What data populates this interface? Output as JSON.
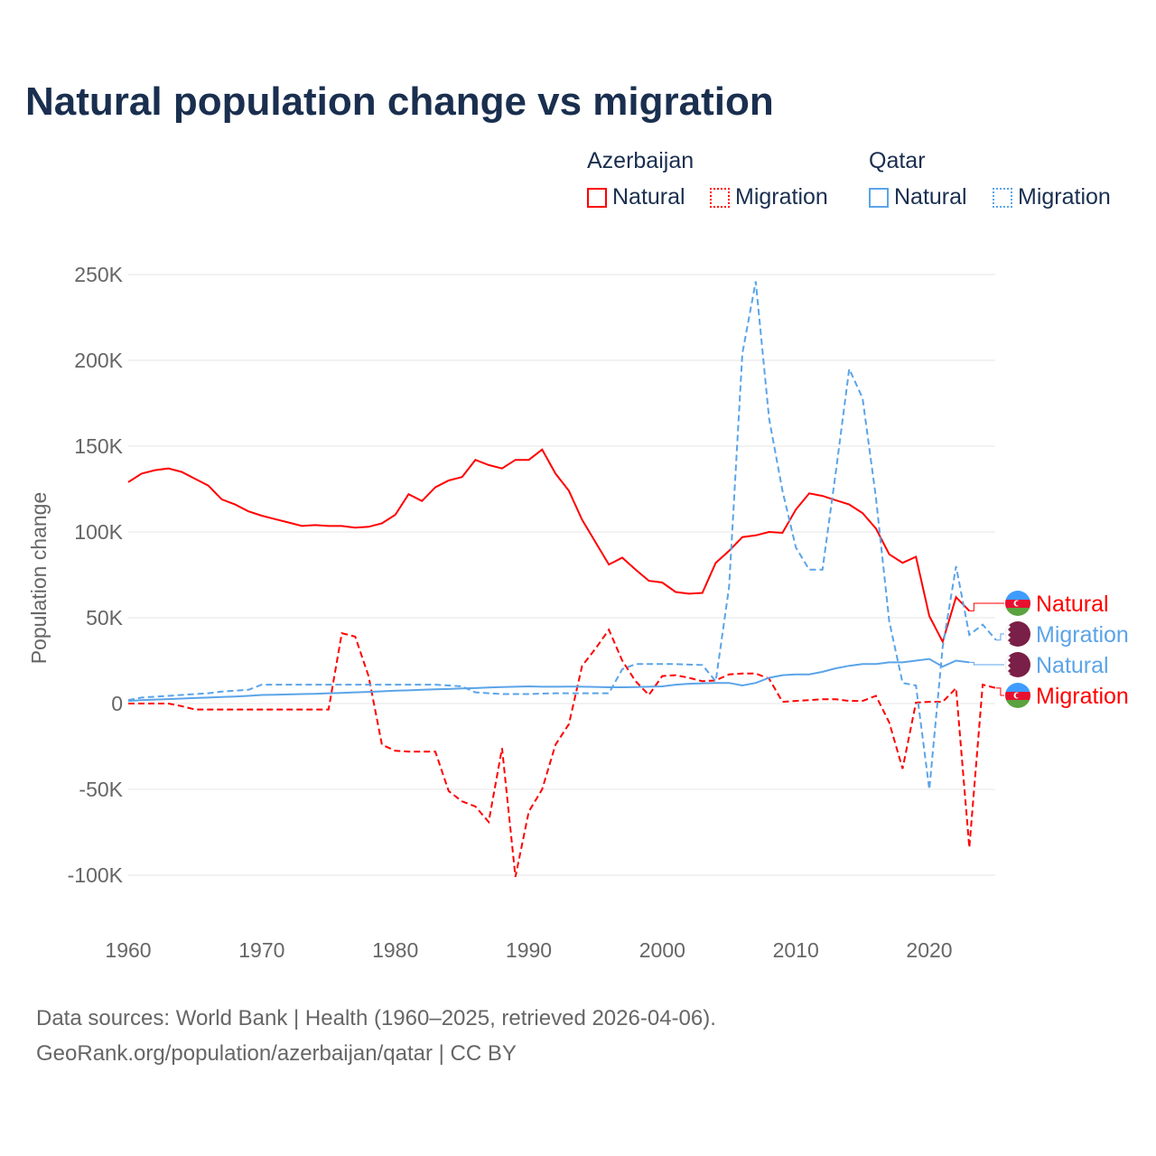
{
  "chart_data": {
    "type": "line",
    "title": "Natural population change vs migration",
    "ylabel": "Population change",
    "xlabel": "",
    "xlim": [
      1960,
      2025
    ],
    "ylim": [
      -100000,
      250000
    ],
    "yticks": [
      {
        "v": 250000,
        "label": "250K"
      },
      {
        "v": 200000,
        "label": "200K"
      },
      {
        "v": 150000,
        "label": "150K"
      },
      {
        "v": 100000,
        "label": "100K"
      },
      {
        "v": 50000,
        "label": "50K"
      },
      {
        "v": 0,
        "label": "0"
      },
      {
        "v": -50000,
        "label": "-50K"
      },
      {
        "v": -100000,
        "label": "-100K"
      }
    ],
    "xticks": [
      {
        "v": 1960,
        "label": "1960"
      },
      {
        "v": 1970,
        "label": "1970"
      },
      {
        "v": 1980,
        "label": "1980"
      },
      {
        "v": 1990,
        "label": "1990"
      },
      {
        "v": 2000,
        "label": "2000"
      },
      {
        "v": 2010,
        "label": "2010"
      },
      {
        "v": 2020,
        "label": "2020"
      }
    ],
    "grid": true,
    "legend": {
      "groups": [
        {
          "name": "Azerbaijan",
          "items": [
            "Natural",
            "Migration"
          ]
        },
        {
          "name": "Qatar",
          "items": [
            "Natural",
            "Migration"
          ]
        }
      ],
      "placement": "top-right"
    },
    "series": [
      {
        "name": "Azerbaijan Natural",
        "country": "Azerbaijan",
        "kind": "Natural",
        "color": "#ff0000",
        "dash": false,
        "start": 1960,
        "values": [
          129,
          134,
          136,
          137,
          135,
          131,
          127,
          119,
          116,
          112,
          109.5,
          107.5,
          105.5,
          103.5,
          104,
          103.5,
          103.5,
          102.5,
          103,
          105,
          110,
          122,
          118,
          126,
          130,
          132,
          142,
          139,
          137,
          142,
          142,
          148,
          134,
          124,
          107,
          94,
          81,
          85,
          78,
          71.5,
          70.5,
          65,
          64,
          64.5,
          82,
          89,
          97,
          98,
          100,
          99.5,
          113,
          122.5,
          121,
          118.5,
          116,
          111,
          102,
          87,
          82,
          85.5,
          51,
          36,
          62,
          54
        ]
      },
      {
        "name": "Azerbaijan Migration",
        "country": "Azerbaijan",
        "kind": "Migration",
        "color": "#ff0000",
        "dash": true,
        "start": 1960,
        "values": [
          0,
          0,
          0,
          0,
          -1.5,
          -3.5,
          -3.5,
          -3.5,
          -3.5,
          -3.5,
          -3.5,
          -3.5,
          -3.5,
          -3.5,
          -3.5,
          -3.5,
          41,
          39,
          16,
          -24,
          -27.5,
          -28,
          -28,
          -28,
          -51,
          -57,
          -60,
          -69,
          -26,
          -101,
          -63,
          -50,
          -24,
          -12,
          22,
          32,
          43,
          25,
          13,
          5,
          16,
          16.5,
          15,
          13,
          13.5,
          17,
          17.5,
          17.5,
          14.5,
          1,
          1.5,
          2,
          2.5,
          2.5,
          1.5,
          1.5,
          4.5,
          -11,
          -38,
          0.5,
          1,
          1,
          9,
          -84,
          11,
          9
        ]
      },
      {
        "name": "Qatar Natural",
        "country": "Qatar",
        "kind": "Natural",
        "color": "#5ba4e8",
        "dash": false,
        "start": 1960,
        "values": [
          1.5,
          2,
          2.3,
          2.6,
          2.9,
          3.2,
          3.5,
          3.8,
          4.1,
          4.5,
          5,
          5.1,
          5.3,
          5.5,
          5.7,
          6,
          6.2,
          6.5,
          6.8,
          7.1,
          7.5,
          7.7,
          8,
          8.3,
          8.5,
          8.8,
          9,
          9.3,
          9.6,
          9.8,
          10,
          9.8,
          9.8,
          9.9,
          9.8,
          9.7,
          9.5,
          9.5,
          9.6,
          9.8,
          10,
          11,
          11.5,
          11.8,
          12,
          12,
          10.5,
          12,
          15,
          16.5,
          17,
          17,
          18.5,
          20.5,
          22,
          23,
          23,
          24,
          24,
          25,
          26,
          21.5,
          25,
          24
        ]
      },
      {
        "name": "Qatar Migration",
        "country": "Qatar",
        "kind": "Migration",
        "color": "#5ba4e8",
        "dash": true,
        "start": 1960,
        "values": [
          2,
          3.5,
          4,
          4.5,
          5,
          5.5,
          6,
          7,
          7.5,
          8,
          11,
          11,
          11,
          11,
          11,
          11,
          11,
          11,
          11,
          11,
          11,
          11,
          11,
          11,
          10.5,
          10,
          6.5,
          6,
          5.5,
          5.5,
          5.5,
          5.8,
          6,
          6,
          6,
          6,
          6,
          20,
          23,
          23,
          23,
          23,
          22.7,
          22.5,
          13,
          68,
          204,
          246,
          166,
          124,
          91,
          78,
          78,
          135,
          195,
          178,
          120,
          48,
          12,
          10.5,
          -50,
          33,
          80,
          40,
          46,
          37
        ]
      }
    ],
    "unit_multiplier": 1000,
    "end_labels": [
      {
        "label": "Natural",
        "color": "#ff0000",
        "flag": "azerbaijan"
      },
      {
        "label": "Migration",
        "color": "#5ba4e8",
        "flag": "qatar"
      },
      {
        "label": "Natural",
        "color": "#5ba4e8",
        "flag": "qatar"
      },
      {
        "label": "Migration",
        "color": "#ff0000",
        "flag": "azerbaijan"
      }
    ]
  },
  "footer": {
    "line1": "Data sources: World Bank | Health (1960–2025, retrieved 2026-04-06).",
    "line2": "GeoRank.org/population/azerbaijan/qatar | CC BY"
  }
}
